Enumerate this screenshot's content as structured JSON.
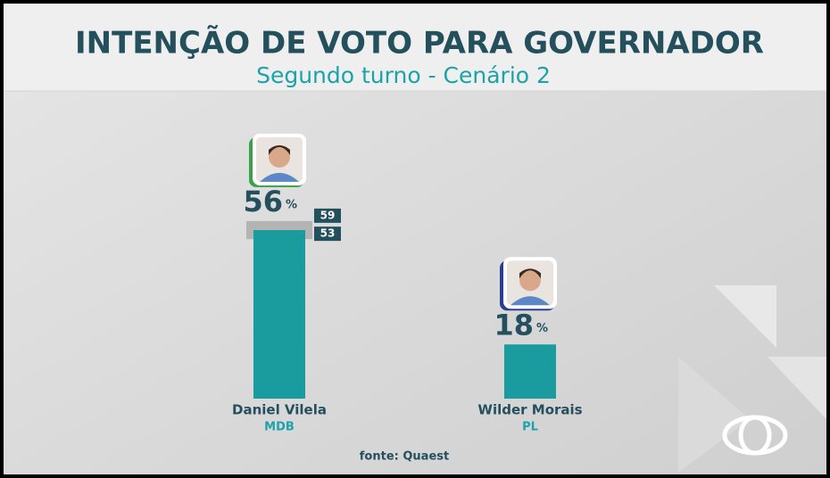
{
  "chart_data": {
    "type": "bar",
    "title": "INTENÇÃO DE VOTO PARA GOVERNADOR",
    "subtitle": "Segundo turno - Cenário 2",
    "categories": [
      "Daniel Vilela",
      "Wilder Morais"
    ],
    "parties": [
      "MDB",
      "PL"
    ],
    "values": [
      56,
      18
    ],
    "value_suffix": "%",
    "margin_high": [
      59,
      null
    ],
    "margin_low": [
      53,
      null
    ],
    "color": "#1a9c9f",
    "source": "fonte: Quaest"
  }
}
